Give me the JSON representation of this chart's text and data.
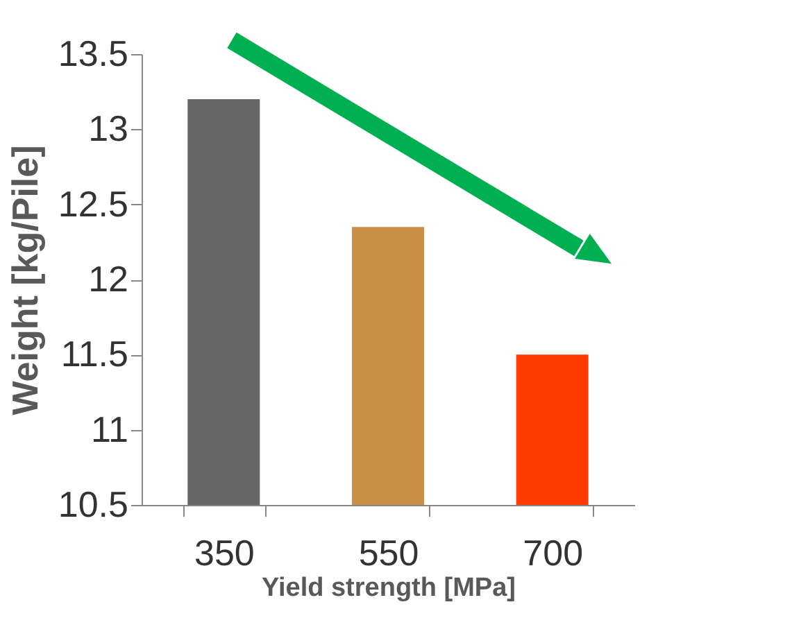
{
  "chart_data": {
    "type": "bar",
    "xlabel": "Yield strength [MPa]",
    "ylabel": "Weight [kg/Pile]",
    "categories": [
      "350",
      "550",
      "700"
    ],
    "values": [
      13.2,
      12.35,
      11.5
    ],
    "colors": [
      "#666666",
      "#c98f42",
      "#ff3b00"
    ],
    "ylim": [
      10.5,
      13.5
    ],
    "yticks": [
      10.5,
      {
        "value": 11,
        "label": "11"
      },
      11.5,
      {
        "value": 12,
        "label": "12"
      },
      12.5,
      {
        "value": 13,
        "label": "13"
      },
      13.5
    ],
    "grid": false,
    "legend": false
  }
}
